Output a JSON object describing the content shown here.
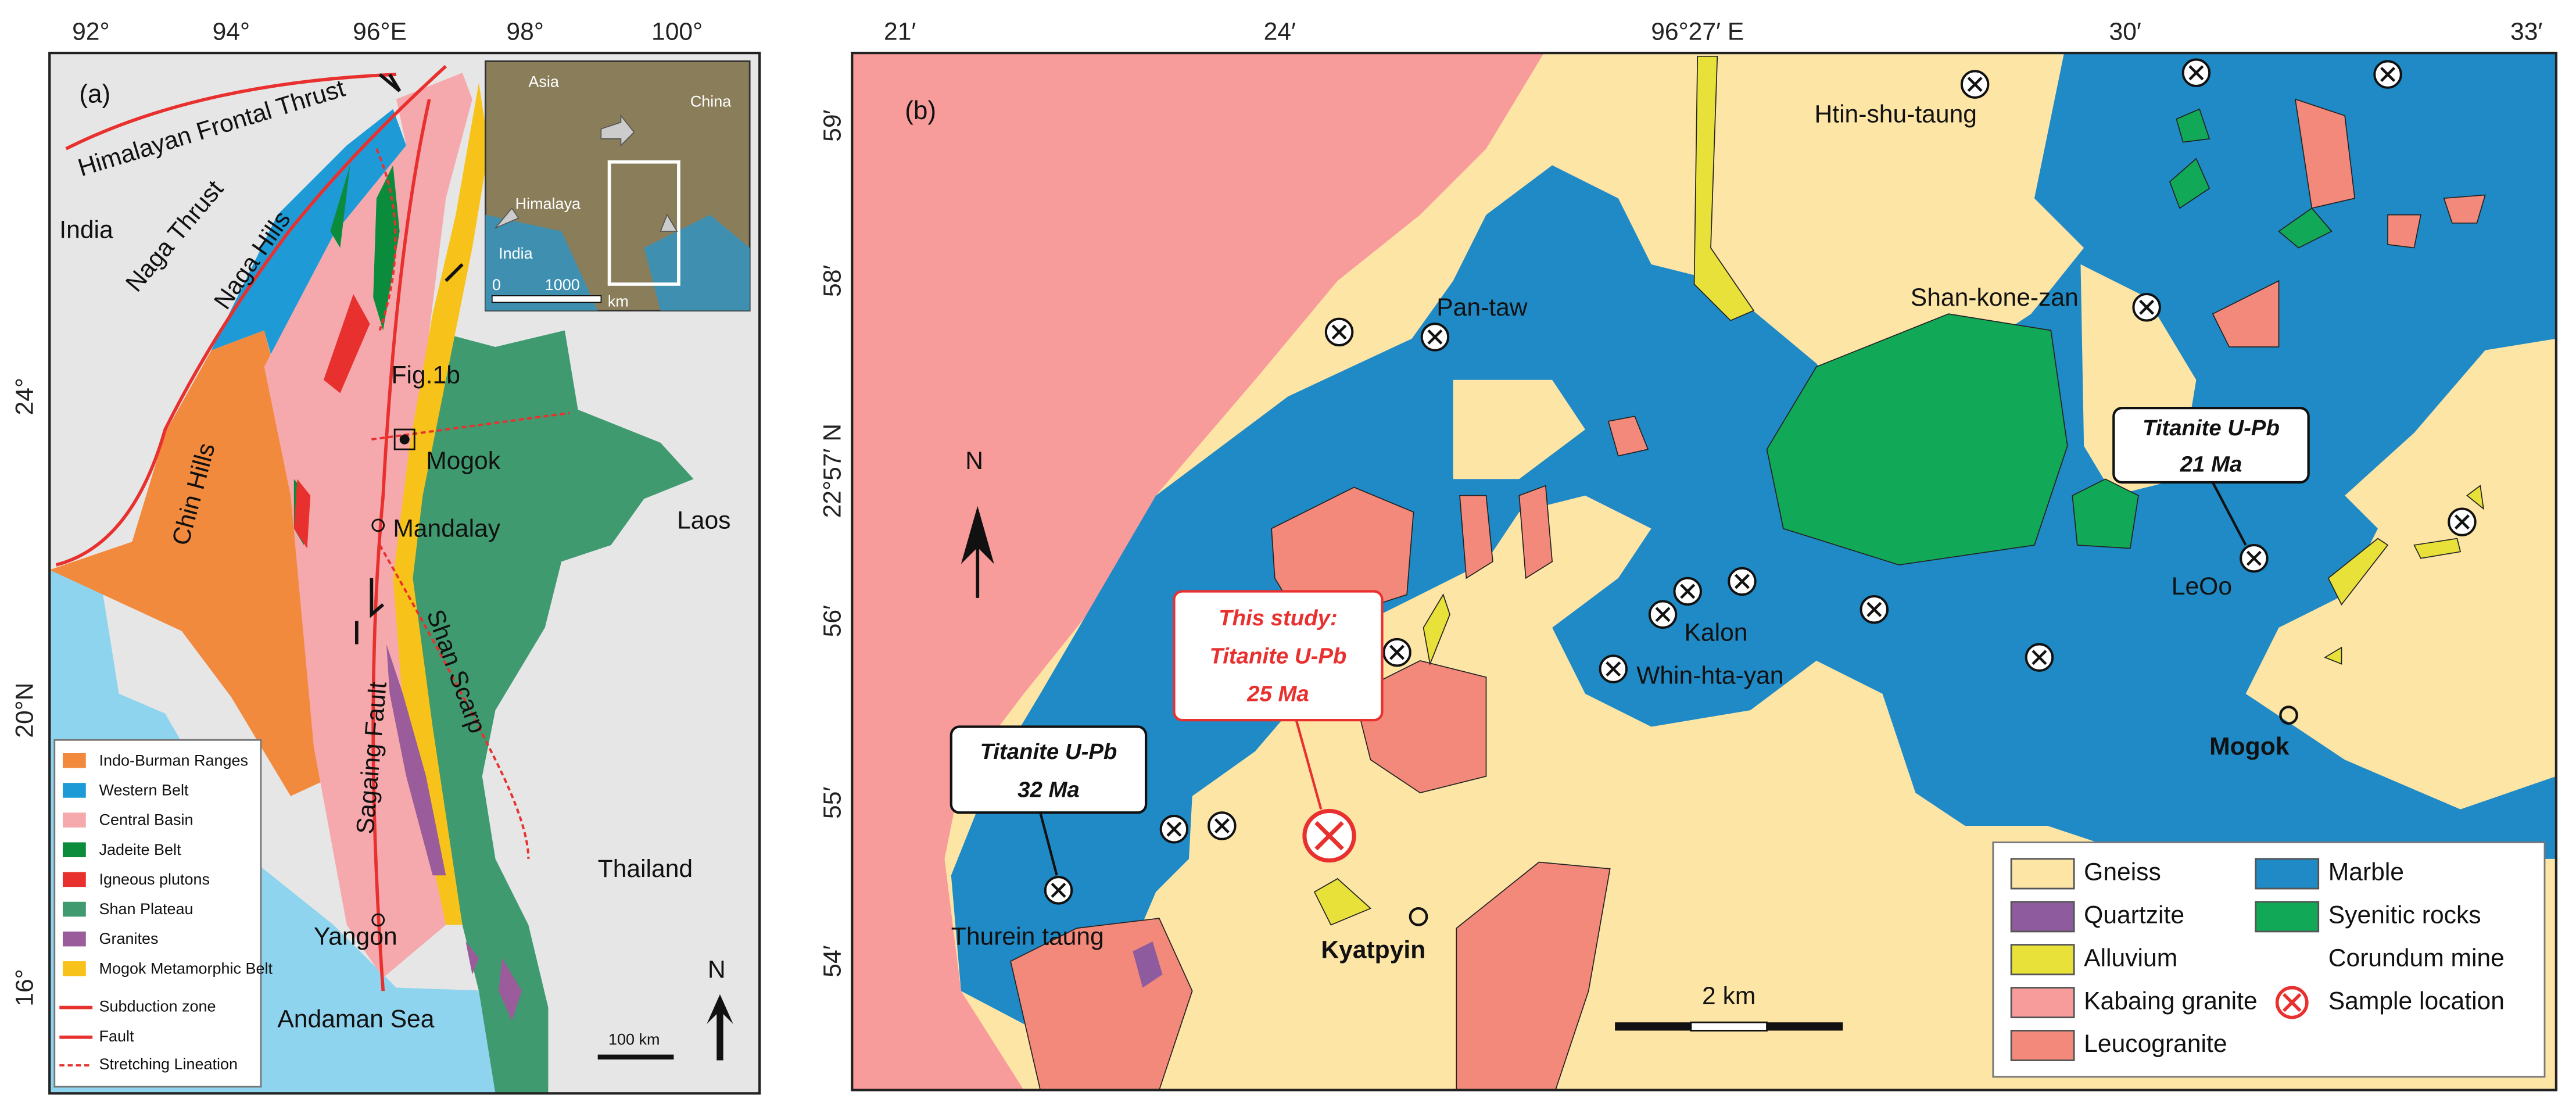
{
  "panel_a": {
    "label": "(a)",
    "lon_ticks": [
      "92°",
      "94°",
      "96°E",
      "98°",
      "100°"
    ],
    "lat_ticks": [
      "24°",
      "20°N",
      "16°"
    ],
    "places": [
      "Himalayan Frontal Thrust",
      "India",
      "Naga Thrust",
      "Naga Hills",
      "Chin Hills",
      "Fig.1b",
      "Mogok",
      "Mandalay",
      "Laos",
      "Sagaing Fault",
      "Shan Scarp",
      "Thailand",
      "Yangon",
      "Andaman Sea"
    ],
    "inset": [
      "Asia",
      "China",
      "Himalaya",
      "India",
      "0",
      "1000",
      "km"
    ],
    "north": "N",
    "scale": "100 km",
    "legend": [
      "Indo-Burman Ranges",
      "Western Belt",
      "Central Basin",
      "Jadeite Belt",
      "Igneous plutons",
      "Shan Plateau",
      "Granites",
      "Mogok Metamorphic Belt",
      "Subduction zone",
      "Fault",
      "Stretching Lineation"
    ]
  },
  "panel_b": {
    "label": "(b)",
    "lon_ticks": [
      "21′",
      "24′",
      "96°27′ E",
      "30′",
      "33′"
    ],
    "lat_ticks": [
      "59′",
      "58′",
      "22°57′ N",
      "56′",
      "55′",
      "54′"
    ],
    "places": [
      "Htin-shu-taung",
      "Pan-taw",
      "Shan-kone-zan",
      "LeOo",
      "Kalon",
      "Whin-hta-yan",
      "Mogok",
      "Thurein taung",
      "Kyatpyin"
    ],
    "callouts": [
      [
        "Titanite U-Pb",
        "21 Ma"
      ],
      [
        "This study:",
        "Titanite U-Pb",
        "25 Ma"
      ],
      [
        "Titanite U-Pb",
        "32 Ma"
      ]
    ],
    "north": "N",
    "scale": "2 km",
    "legend": [
      "Gneiss",
      "Quartzite",
      "Alluvium",
      "Kabaing granite",
      "Leucogranite",
      "Marble",
      "Syenitic rocks",
      "Corundum mine",
      "Sample location"
    ]
  }
}
